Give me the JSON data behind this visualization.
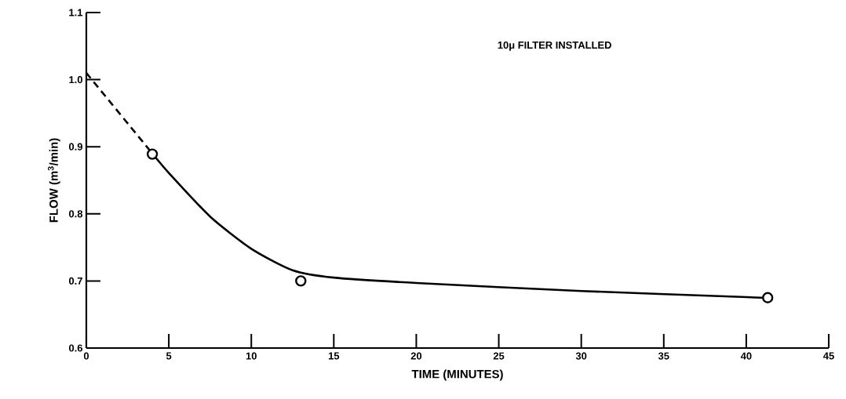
{
  "chart_data": {
    "type": "line",
    "xlabel": "TIME (MINUTES)",
    "ylabel": "FLOW (m$^{3}$/min)",
    "annotations": [
      "10μ FILTER INSTALLED"
    ],
    "xlim": [
      0,
      45
    ],
    "xticks": [
      0,
      5,
      10,
      15,
      20,
      25,
      30,
      35,
      40,
      45
    ],
    "ylim": [
      0.6,
      1.1
    ],
    "yticks": [
      0.6,
      0.7,
      0.8,
      0.9,
      {
        "value": 1.0,
        "label": "1.0"
      },
      1.1
    ],
    "grid": false,
    "series": [
      {
        "color": "#000000",
        "line_style": "dashed",
        "marker": "none",
        "x": [
          0,
          4
        ],
        "values": [
          1.01,
          0.89
        ]
      },
      {
        "color": "#000000",
        "line_style": "solid",
        "marker": "none",
        "x": [
          4,
          5,
          7.5,
          10,
          12.5,
          15,
          20,
          30,
          40,
          41.3
        ],
        "values": [
          0.89,
          0.861,
          0.796,
          0.748,
          0.716,
          0.705,
          0.697,
          0.685,
          0.676,
          0.675
        ]
      },
      {
        "type": "scatter",
        "color": "#000000",
        "marker": "circle",
        "x": [
          4,
          13,
          41.3
        ],
        "values": [
          0.889,
          0.7,
          0.675
        ]
      }
    ]
  }
}
